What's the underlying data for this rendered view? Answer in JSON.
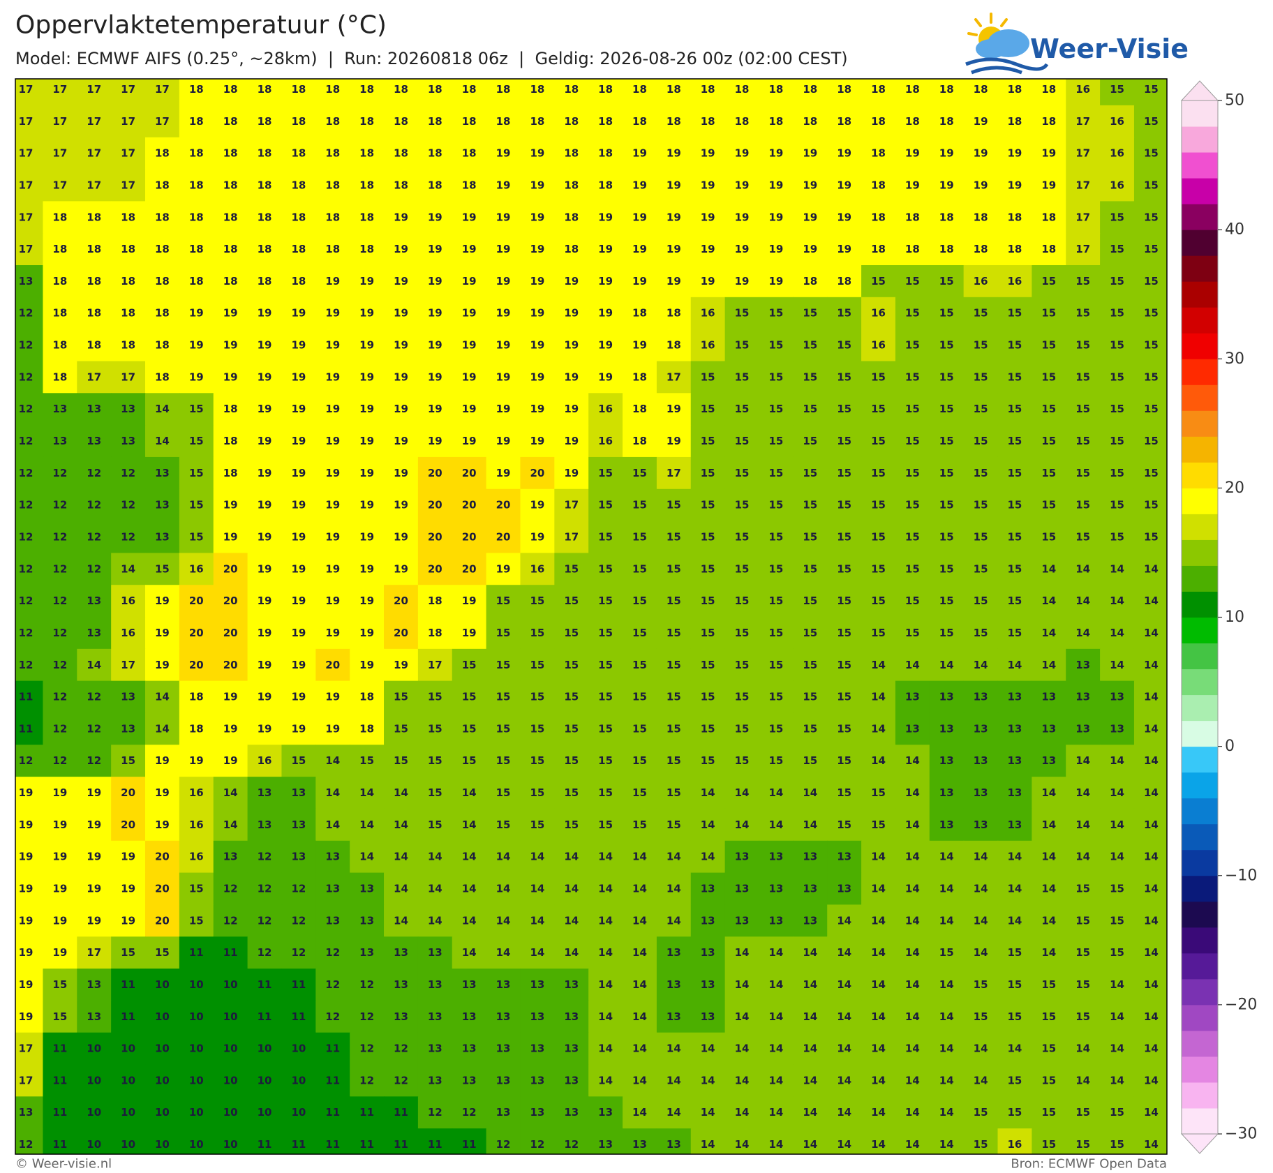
{
  "map": {
    "title": "Oppervlaktetemperatuur (°C)",
    "subtitle": "Model: ECMWF AIFS (0.25°, ~28km)  |  Run: 20260818 06z  |  Geldig: 2026-08-26 00z (02:00 CEST)",
    "logo": "Weer-Visie",
    "footer_left": "© Weer-visie.nl",
    "footer_right": "Bron: ECMWF Open Data",
    "values": [
      [
        17,
        17,
        17,
        17,
        17,
        18,
        18,
        18,
        18,
        18,
        18,
        18,
        18,
        18,
        18,
        18,
        18,
        18,
        18,
        18,
        18,
        18,
        18,
        18,
        18,
        18,
        18,
        18,
        18,
        18,
        18,
        16,
        15,
        15
      ],
      [
        17,
        17,
        17,
        17,
        17,
        18,
        18,
        18,
        18,
        18,
        18,
        18,
        18,
        18,
        18,
        18,
        18,
        18,
        18,
        18,
        18,
        18,
        18,
        18,
        18,
        18,
        18,
        18,
        19,
        18,
        18,
        17,
        16,
        15
      ],
      [
        17,
        17,
        17,
        17,
        18,
        18,
        18,
        18,
        18,
        18,
        18,
        18,
        18,
        18,
        19,
        19,
        18,
        18,
        19,
        19,
        19,
        19,
        19,
        19,
        19,
        18,
        19,
        19,
        19,
        19,
        19,
        17,
        16,
        15
      ],
      [
        17,
        17,
        17,
        17,
        18,
        18,
        18,
        18,
        18,
        18,
        18,
        18,
        18,
        18,
        19,
        19,
        18,
        18,
        19,
        19,
        19,
        19,
        19,
        19,
        19,
        18,
        19,
        19,
        19,
        19,
        19,
        17,
        16,
        15
      ],
      [
        17,
        18,
        18,
        18,
        18,
        18,
        18,
        18,
        18,
        18,
        18,
        19,
        19,
        19,
        19,
        19,
        18,
        19,
        19,
        19,
        19,
        19,
        19,
        19,
        19,
        18,
        18,
        18,
        18,
        18,
        18,
        17,
        15,
        15
      ],
      [
        17,
        18,
        18,
        18,
        18,
        18,
        18,
        18,
        18,
        18,
        18,
        19,
        19,
        19,
        19,
        19,
        18,
        19,
        19,
        19,
        19,
        19,
        19,
        19,
        19,
        18,
        18,
        18,
        18,
        18,
        18,
        17,
        15,
        15
      ],
      [
        13,
        18,
        18,
        18,
        18,
        18,
        18,
        18,
        18,
        19,
        19,
        19,
        19,
        19,
        19,
        19,
        19,
        19,
        19,
        19,
        19,
        19,
        19,
        18,
        18,
        15,
        15,
        15,
        16,
        16,
        15,
        15,
        15,
        15
      ],
      [
        12,
        18,
        18,
        18,
        18,
        19,
        19,
        19,
        19,
        19,
        19,
        19,
        19,
        19,
        19,
        19,
        19,
        19,
        18,
        18,
        16,
        15,
        15,
        15,
        15,
        16,
        15,
        15,
        15,
        15,
        15,
        15,
        15,
        15
      ],
      [
        12,
        18,
        18,
        18,
        18,
        19,
        19,
        19,
        19,
        19,
        19,
        19,
        19,
        19,
        19,
        19,
        19,
        19,
        19,
        18,
        16,
        15,
        15,
        15,
        15,
        16,
        15,
        15,
        15,
        15,
        15,
        15,
        15,
        15
      ],
      [
        12,
        18,
        17,
        17,
        18,
        19,
        19,
        19,
        19,
        19,
        19,
        19,
        19,
        19,
        19,
        19,
        19,
        19,
        18,
        17,
        15,
        15,
        15,
        15,
        15,
        15,
        15,
        15,
        15,
        15,
        15,
        15,
        15,
        15
      ],
      [
        12,
        13,
        13,
        13,
        14,
        15,
        18,
        19,
        19,
        19,
        19,
        19,
        19,
        19,
        19,
        19,
        19,
        16,
        18,
        19,
        15,
        15,
        15,
        15,
        15,
        15,
        15,
        15,
        15,
        15,
        15,
        15,
        15,
        15
      ],
      [
        12,
        13,
        13,
        13,
        14,
        15,
        18,
        19,
        19,
        19,
        19,
        19,
        19,
        19,
        19,
        19,
        19,
        16,
        18,
        19,
        15,
        15,
        15,
        15,
        15,
        15,
        15,
        15,
        15,
        15,
        15,
        15,
        15,
        15
      ],
      [
        12,
        12,
        12,
        12,
        13,
        15,
        18,
        19,
        19,
        19,
        19,
        19,
        20,
        20,
        19,
        20,
        19,
        15,
        15,
        17,
        15,
        15,
        15,
        15,
        15,
        15,
        15,
        15,
        15,
        15,
        15,
        15,
        15,
        15
      ],
      [
        12,
        12,
        12,
        12,
        13,
        15,
        19,
        19,
        19,
        19,
        19,
        19,
        20,
        20,
        20,
        19,
        17,
        15,
        15,
        15,
        15,
        15,
        15,
        15,
        15,
        15,
        15,
        15,
        15,
        15,
        15,
        15,
        15,
        15
      ],
      [
        12,
        12,
        12,
        12,
        13,
        15,
        19,
        19,
        19,
        19,
        19,
        19,
        20,
        20,
        20,
        19,
        17,
        15,
        15,
        15,
        15,
        15,
        15,
        15,
        15,
        15,
        15,
        15,
        15,
        15,
        15,
        15,
        15,
        15
      ],
      [
        12,
        12,
        12,
        14,
        15,
        16,
        20,
        19,
        19,
        19,
        19,
        19,
        20,
        20,
        19,
        16,
        15,
        15,
        15,
        15,
        15,
        15,
        15,
        15,
        15,
        15,
        15,
        15,
        15,
        15,
        14,
        14,
        14,
        14
      ],
      [
        12,
        12,
        13,
        16,
        19,
        20,
        20,
        19,
        19,
        19,
        19,
        20,
        18,
        19,
        15,
        15,
        15,
        15,
        15,
        15,
        15,
        15,
        15,
        15,
        15,
        15,
        15,
        15,
        15,
        15,
        14,
        14,
        14,
        14
      ],
      [
        12,
        12,
        13,
        16,
        19,
        20,
        20,
        19,
        19,
        19,
        19,
        20,
        18,
        19,
        15,
        15,
        15,
        15,
        15,
        15,
        15,
        15,
        15,
        15,
        15,
        15,
        15,
        15,
        15,
        15,
        14,
        14,
        14,
        14
      ],
      [
        12,
        12,
        14,
        17,
        19,
        20,
        20,
        19,
        19,
        20,
        19,
        19,
        17,
        15,
        15,
        15,
        15,
        15,
        15,
        15,
        15,
        15,
        15,
        15,
        15,
        14,
        14,
        14,
        14,
        14,
        14,
        13,
        14,
        14
      ],
      [
        11,
        12,
        12,
        13,
        14,
        18,
        19,
        19,
        19,
        19,
        18,
        15,
        15,
        15,
        15,
        15,
        15,
        15,
        15,
        15,
        15,
        15,
        15,
        15,
        15,
        14,
        13,
        13,
        13,
        13,
        13,
        13,
        13,
        14
      ],
      [
        11,
        12,
        12,
        13,
        14,
        18,
        19,
        19,
        19,
        19,
        18,
        15,
        15,
        15,
        15,
        15,
        15,
        15,
        15,
        15,
        15,
        15,
        15,
        15,
        15,
        14,
        13,
        13,
        13,
        13,
        13,
        13,
        13,
        14
      ],
      [
        12,
        12,
        12,
        15,
        19,
        19,
        19,
        16,
        15,
        14,
        15,
        15,
        15,
        15,
        15,
        15,
        15,
        15,
        15,
        15,
        15,
        15,
        15,
        15,
        15,
        14,
        14,
        13,
        13,
        13,
        13,
        14,
        14,
        14
      ],
      [
        19,
        19,
        19,
        20,
        19,
        16,
        14,
        13,
        13,
        14,
        14,
        14,
        15,
        14,
        15,
        15,
        15,
        15,
        15,
        15,
        14,
        14,
        14,
        14,
        15,
        15,
        14,
        13,
        13,
        13,
        14,
        14,
        14,
        14
      ],
      [
        19,
        19,
        19,
        20,
        19,
        16,
        14,
        13,
        13,
        14,
        14,
        14,
        15,
        14,
        15,
        15,
        15,
        15,
        15,
        15,
        14,
        14,
        14,
        14,
        15,
        15,
        14,
        13,
        13,
        13,
        14,
        14,
        14,
        14
      ],
      [
        19,
        19,
        19,
        19,
        20,
        16,
        13,
        12,
        13,
        13,
        14,
        14,
        14,
        14,
        14,
        14,
        14,
        14,
        14,
        14,
        14,
        13,
        13,
        13,
        13,
        14,
        14,
        14,
        14,
        14,
        14,
        14,
        14,
        14
      ],
      [
        19,
        19,
        19,
        19,
        20,
        15,
        12,
        12,
        12,
        13,
        13,
        14,
        14,
        14,
        14,
        14,
        14,
        14,
        14,
        14,
        13,
        13,
        13,
        13,
        13,
        14,
        14,
        14,
        14,
        14,
        14,
        15,
        15,
        14
      ],
      [
        19,
        19,
        19,
        19,
        20,
        15,
        12,
        12,
        12,
        13,
        13,
        14,
        14,
        14,
        14,
        14,
        14,
        14,
        14,
        14,
        13,
        13,
        13,
        13,
        14,
        14,
        14,
        14,
        14,
        14,
        14,
        15,
        15,
        14
      ],
      [
        19,
        19,
        17,
        15,
        15,
        11,
        11,
        12,
        12,
        12,
        13,
        13,
        13,
        14,
        14,
        14,
        14,
        14,
        14,
        13,
        13,
        14,
        14,
        14,
        14,
        14,
        14,
        15,
        14,
        15,
        14,
        15,
        15,
        14
      ],
      [
        19,
        15,
        13,
        11,
        10,
        10,
        10,
        11,
        11,
        12,
        12,
        13,
        13,
        13,
        13,
        13,
        13,
        14,
        14,
        13,
        13,
        14,
        14,
        14,
        14,
        14,
        14,
        14,
        15,
        15,
        15,
        15,
        14,
        14
      ],
      [
        19,
        15,
        13,
        11,
        10,
        10,
        10,
        11,
        11,
        12,
        12,
        13,
        13,
        13,
        13,
        13,
        13,
        14,
        14,
        13,
        13,
        14,
        14,
        14,
        14,
        14,
        14,
        14,
        15,
        15,
        15,
        15,
        14,
        14
      ],
      [
        17,
        11,
        10,
        10,
        10,
        10,
        10,
        10,
        10,
        11,
        12,
        12,
        13,
        13,
        13,
        13,
        13,
        14,
        14,
        14,
        14,
        14,
        14,
        14,
        14,
        14,
        14,
        14,
        14,
        14,
        15,
        14,
        14,
        14
      ],
      [
        17,
        11,
        10,
        10,
        10,
        10,
        10,
        10,
        10,
        11,
        12,
        12,
        13,
        13,
        13,
        13,
        13,
        14,
        14,
        14,
        14,
        14,
        14,
        14,
        14,
        14,
        14,
        14,
        14,
        15,
        15,
        14,
        14,
        14
      ],
      [
        13,
        11,
        10,
        10,
        10,
        10,
        10,
        10,
        10,
        11,
        11,
        11,
        12,
        12,
        13,
        13,
        13,
        13,
        14,
        14,
        14,
        14,
        14,
        14,
        14,
        14,
        14,
        14,
        15,
        15,
        15,
        15,
        15,
        14
      ],
      [
        12,
        11,
        10,
        10,
        10,
        10,
        10,
        11,
        11,
        11,
        11,
        11,
        11,
        11,
        12,
        12,
        12,
        13,
        13,
        13,
        14,
        14,
        14,
        14,
        14,
        14,
        14,
        14,
        15,
        16,
        15,
        15,
        15,
        14
      ]
    ],
    "colorbar": {
      "lim": [
        -30,
        50
      ],
      "ticks": [
        50,
        40,
        30,
        20,
        10,
        0,
        {
          "value": -10,
          "label": "−10"
        },
        {
          "value": -20,
          "label": "−20"
        },
        {
          "value": -30,
          "label": "−30"
        }
      ],
      "colors": [
        "#fde4f8",
        "#f8b4f0",
        "#e486e2",
        "#c466d2",
        "#a048c2",
        "#7a32b2",
        "#561a98",
        "#3a0a78",
        "#1c0a50",
        "#0a1a7a",
        "#0a3aa0",
        "#0a5ab8",
        "#0a7ed2",
        "#0aa4e8",
        "#38c8f8",
        "#d8fce4",
        "#aaeeb0",
        "#78dc78",
        "#44c444",
        "#00bb00",
        "#009000",
        "#4caf00",
        "#8cc800",
        "#d0e000",
        "#ffff00",
        "#ffdc00",
        "#f5b400",
        "#f88c14",
        "#ff5a0a",
        "#ff2a00",
        "#f00000",
        "#d20000",
        "#aa0000",
        "#7e0012",
        "#500030",
        "#8a0060",
        "#c800a8",
        "#f050d0",
        "#f8a8dc",
        "#fbe0f0"
      ]
    }
  }
}
